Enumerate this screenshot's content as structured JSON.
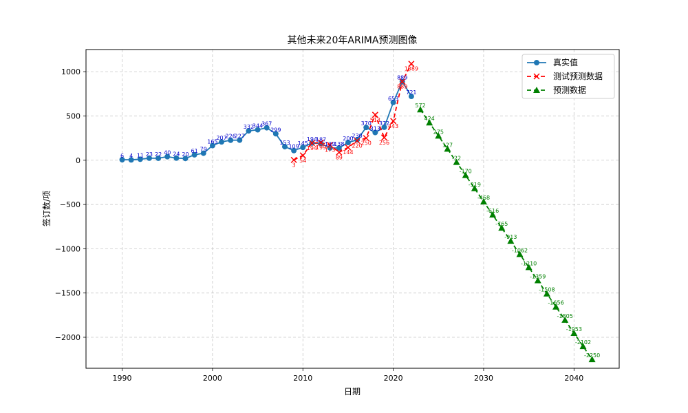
{
  "chart_data": {
    "type": "line",
    "title": "其他未来20年ARIMA预测图像",
    "xlabel": "日期",
    "ylabel": "签订数/项",
    "xlim": [
      1986,
      2045
    ],
    "ylim": [
      -2350,
      1250
    ],
    "xticks": [
      1990,
      2000,
      2010,
      2020,
      2030,
      2040
    ],
    "yticks": [
      -2000,
      -1500,
      -1000,
      -500,
      0,
      500,
      1000
    ],
    "grid": true,
    "legend_position": "top-right",
    "series": [
      {
        "name": "真实值",
        "color": "#1f77b4",
        "marker": "circle",
        "linestyle": "solid",
        "x": [
          1990,
          1991,
          1992,
          1993,
          1994,
          1995,
          1996,
          1997,
          1998,
          1999,
          2000,
          2001,
          2002,
          2003,
          2004,
          2005,
          2006,
          2007,
          2008,
          2009,
          2010,
          2011,
          2012,
          2013,
          2014,
          2015,
          2016,
          2017,
          2018,
          2019,
          2020,
          2021,
          2022
        ],
        "y": [
          6,
          4,
          11,
          23,
          22,
          40,
          24,
          20,
          61,
          79,
          165,
          207,
          226,
          227,
          332,
          344,
          367,
          299,
          153,
          109,
          145,
          194,
          187,
          139,
          138,
          200,
          230,
          370,
          313,
          372,
          653,
          889,
          721
        ]
      },
      {
        "name": "测试预测数据",
        "color": "#ff0000",
        "marker": "x",
        "linestyle": "dashed",
        "x": [
          2009,
          2010,
          2011,
          2012,
          2013,
          2014,
          2015,
          2016,
          2017,
          2018,
          2019,
          2020,
          2021,
          2022
        ],
        "y": [
          3,
          54,
          194,
          199,
          173,
          89,
          144,
          220,
          250,
          513,
          256,
          443,
          889,
          1089
        ]
      },
      {
        "name": "预测数据",
        "color": "#008000",
        "marker": "triangle",
        "linestyle": "dashed",
        "x": [
          2023,
          2024,
          2025,
          2026,
          2027,
          2028,
          2029,
          2030,
          2031,
          2032,
          2033,
          2034,
          2035,
          2036,
          2037,
          2038,
          2039,
          2040,
          2041,
          2042
        ],
        "y": [
          572,
          424,
          275,
          127,
          -22,
          -170,
          -319,
          -468,
          -616,
          -765,
          -913,
          -1062,
          -1210,
          -1359,
          -1508,
          -1656,
          -1805,
          -1953,
          -2102,
          -2250
        ]
      }
    ]
  }
}
